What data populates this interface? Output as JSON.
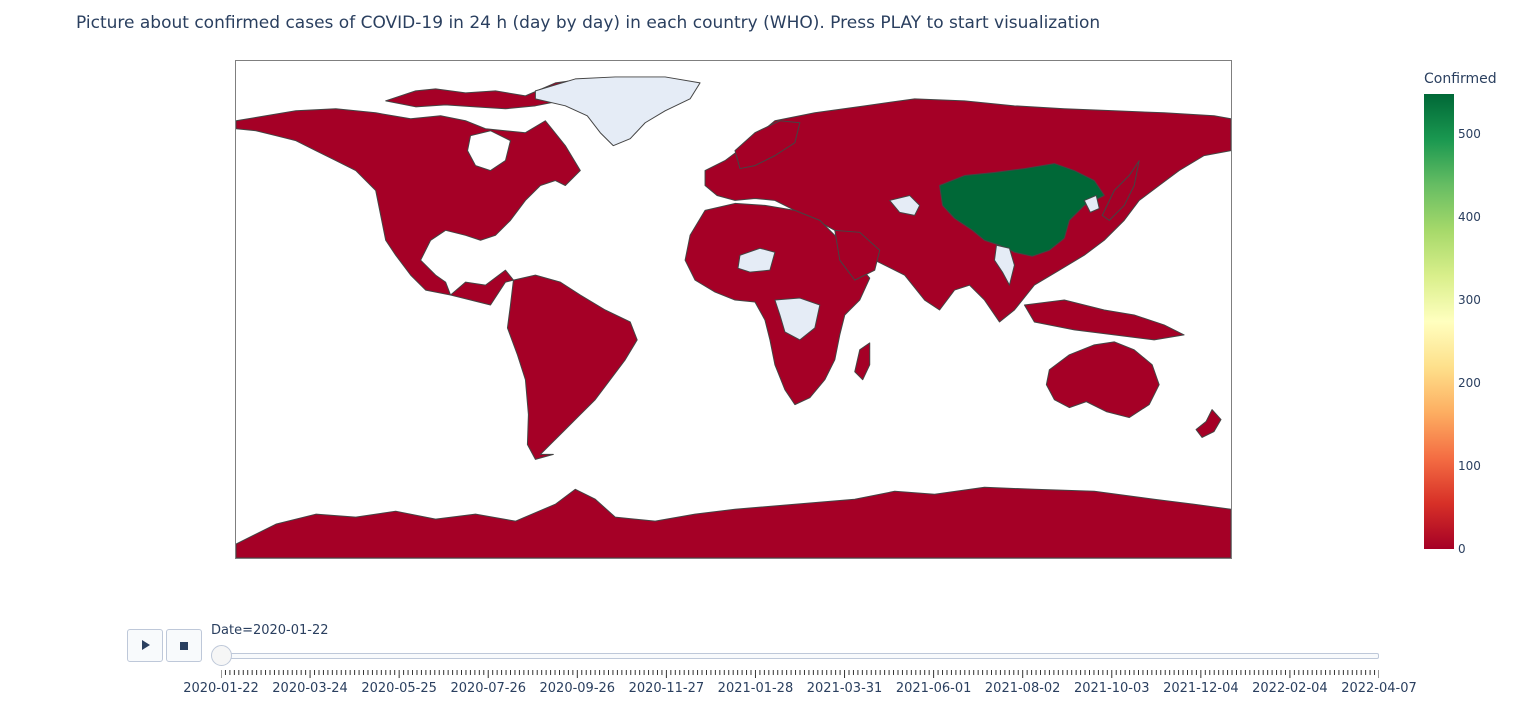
{
  "title": "Picture about confirmed cases of COVID-19 in 24 h (day by day) in each country (WHO). Press PLAY to start visualization",
  "map": {
    "projection": "equirectangular",
    "no_data_color": "#e5ecf6",
    "border_color": "#444444"
  },
  "colorbar": {
    "title": "Confirmed",
    "colorscale": [
      "#a50026",
      "#d73027",
      "#f46d43",
      "#fdae61",
      "#fee08b",
      "#ffffbf",
      "#d9ef8b",
      "#a6d96a",
      "#66bd63",
      "#1a9850",
      "#006837"
    ],
    "range": [
      0,
      548
    ],
    "ticks": [
      "0",
      "100",
      "200",
      "300",
      "400",
      "500"
    ]
  },
  "controls": {
    "play_icon": "play-icon",
    "stop_icon": "stop-icon",
    "current_value": "Date=2020-01-22",
    "tick_labels": [
      "2020-01-22",
      "2020-03-24",
      "2020-05-25",
      "2020-07-26",
      "2020-09-26",
      "2020-11-27",
      "2021-01-28",
      "2021-03-31",
      "2021-06-01",
      "2021-08-02",
      "2021-10-03",
      "2021-12-04",
      "2022-02-04",
      "2022-04-07"
    ]
  },
  "chart_data": {
    "type": "choropleth",
    "frame": "2020-01-22",
    "z_label": "Confirmed",
    "countries": [
      {
        "name": "China",
        "value": 548
      },
      {
        "name": "United States",
        "value": 0
      },
      {
        "name": "Canada",
        "value": 0
      },
      {
        "name": "Mexico",
        "value": 0
      },
      {
        "name": "Brazil",
        "value": 0
      },
      {
        "name": "Argentina",
        "value": 0
      },
      {
        "name": "Russia",
        "value": 0
      },
      {
        "name": "India",
        "value": 0
      },
      {
        "name": "Australia",
        "value": 0
      },
      {
        "name": "Antarctica",
        "value": 0
      },
      {
        "name": "Greenland",
        "value": null
      },
      {
        "name": "Niger",
        "value": null
      },
      {
        "name": "Democratic Republic of the Congo",
        "value": null
      },
      {
        "name": "Turkmenistan",
        "value": null
      },
      {
        "name": "Myanmar",
        "value": null
      },
      {
        "name": "North Korea",
        "value": null
      }
    ]
  }
}
